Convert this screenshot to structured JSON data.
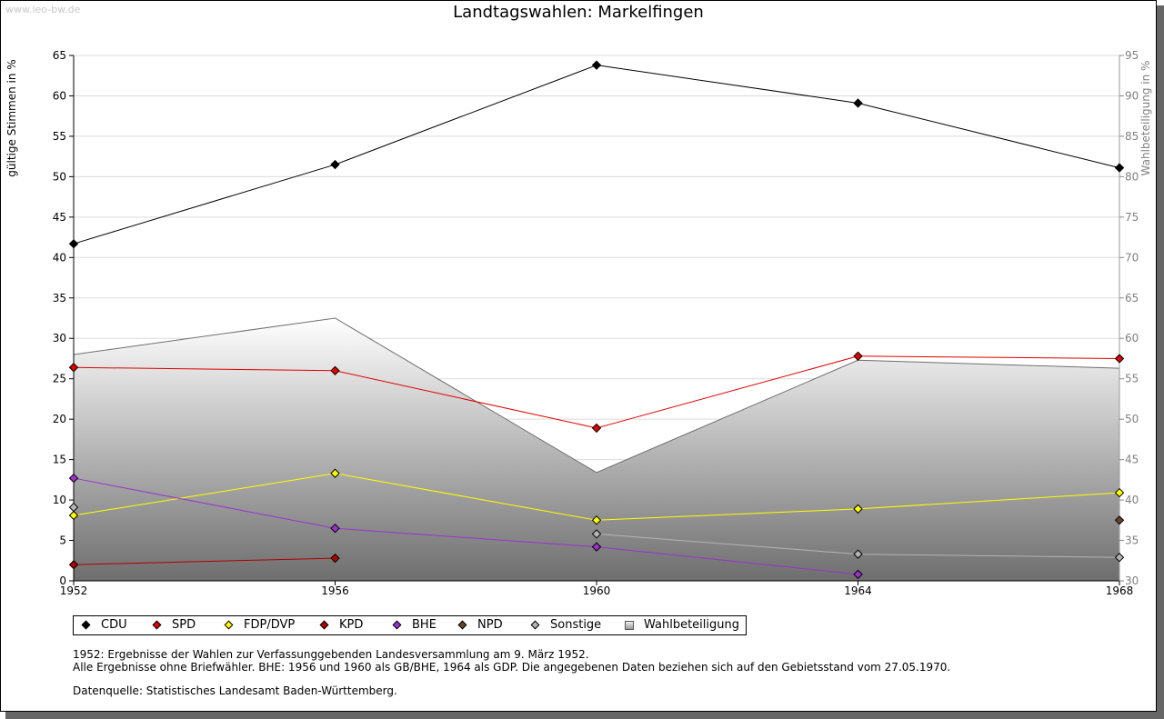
{
  "watermark": "www.leo-bw.de",
  "chart_data": {
    "type": "line",
    "title": "Landtagswahlen: Markelfingen",
    "ylabel": "gültige Stimmen in %",
    "y2label": "Wahlbeteiligung in %",
    "x": [
      "1952",
      "1956",
      "1960",
      "1964",
      "1968"
    ],
    "ylim": [
      0,
      65
    ],
    "y_ticks": [
      0,
      5,
      10,
      15,
      20,
      25,
      30,
      35,
      40,
      45,
      50,
      55,
      60,
      65
    ],
    "y2lim": [
      30,
      95
    ],
    "y2_ticks": [
      30,
      35,
      40,
      45,
      50,
      55,
      60,
      65,
      70,
      75,
      80,
      85,
      90,
      95
    ],
    "grid": true,
    "legend_position": "bottom",
    "series": [
      {
        "name": "CDU",
        "color": "#000000",
        "values": [
          41.7,
          51.5,
          63.8,
          59.1,
          51.1
        ]
      },
      {
        "name": "SPD",
        "color": "#e00000",
        "values": [
          26.4,
          26.0,
          18.9,
          27.8,
          27.5
        ]
      },
      {
        "name": "FDP/DVP",
        "color": "#ffff00",
        "values": [
          8.1,
          13.3,
          7.5,
          8.9,
          10.9
        ]
      },
      {
        "name": "KPD",
        "color": "#b00000",
        "values": [
          2.0,
          2.8,
          null,
          null,
          null
        ]
      },
      {
        "name": "BHE",
        "color": "#9933cc",
        "values": [
          12.7,
          6.5,
          4.2,
          0.8,
          null
        ]
      },
      {
        "name": "NPD",
        "color": "#66442a",
        "values": [
          null,
          null,
          null,
          null,
          7.5
        ]
      },
      {
        "name": "Sonstige",
        "color": "#b4b4b4",
        "values": [
          9.1,
          null,
          5.8,
          3.3,
          2.9
        ]
      }
    ],
    "wahlbeteiligung": {
      "name": "Wahlbeteiligung",
      "axis": "right",
      "values": [
        58.0,
        62.5,
        43.4,
        57.3,
        56.3
      ]
    }
  },
  "notes": [
    "1952: Ergebnisse der Wahlen zur Verfassunggebenden Landesversammlung am 9. März 1952.",
    "Alle Ergebnisse ohne Briefwähler. BHE: 1956 und 1960 als GB/BHE, 1964 als GDP. Die angegebenen Daten beziehen sich auf den Gebietsstand vom 27.05.1970."
  ],
  "source": "Datenquelle: Statistisches Landesamt Baden-Württemberg."
}
